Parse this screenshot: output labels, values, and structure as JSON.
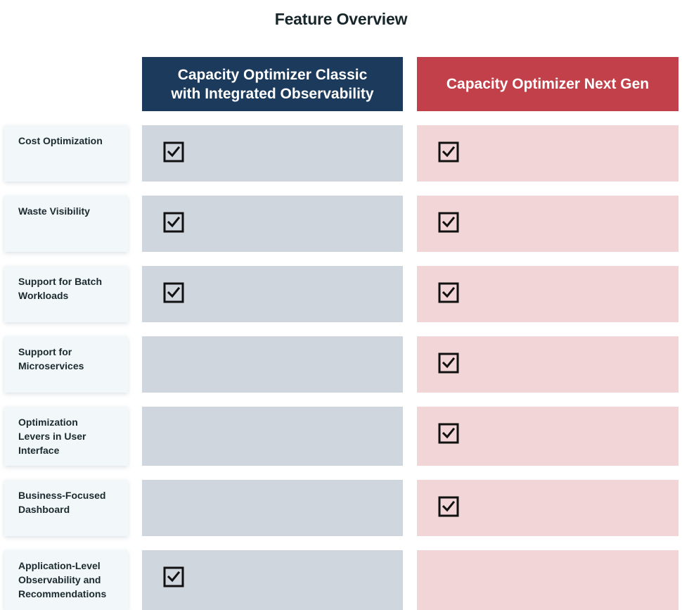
{
  "title": "Feature Overview",
  "columns": {
    "classic": {
      "line1": "Capacity Optimizer Classic",
      "line2": "with Integrated Observability",
      "color": "#1c3b5c"
    },
    "nextgen": {
      "label": "Capacity Optimizer Next Gen",
      "color": "#c2404a"
    }
  },
  "rows": [
    {
      "label": [
        "Cost Optimization"
      ],
      "classic": true,
      "nextgen": true
    },
    {
      "label": [
        "Waste Visibility"
      ],
      "classic": true,
      "nextgen": true
    },
    {
      "label": [
        "Support for Batch",
        "Workloads"
      ],
      "classic": true,
      "nextgen": true
    },
    {
      "label": [
        "Support for",
        "Microservices"
      ],
      "classic": false,
      "nextgen": true
    },
    {
      "label": [
        "Optimization",
        "Levers in User",
        "Interface"
      ],
      "classic": false,
      "nextgen": true
    },
    {
      "label": [
        "Business-Focused",
        "Dashboard"
      ],
      "classic": false,
      "nextgen": true
    },
    {
      "label": [
        "Application-Level",
        "Observability and",
        "Recommendations"
      ],
      "classic": true,
      "nextgen": false
    }
  ],
  "icons": {
    "check": "checkbox-checked-icon"
  }
}
